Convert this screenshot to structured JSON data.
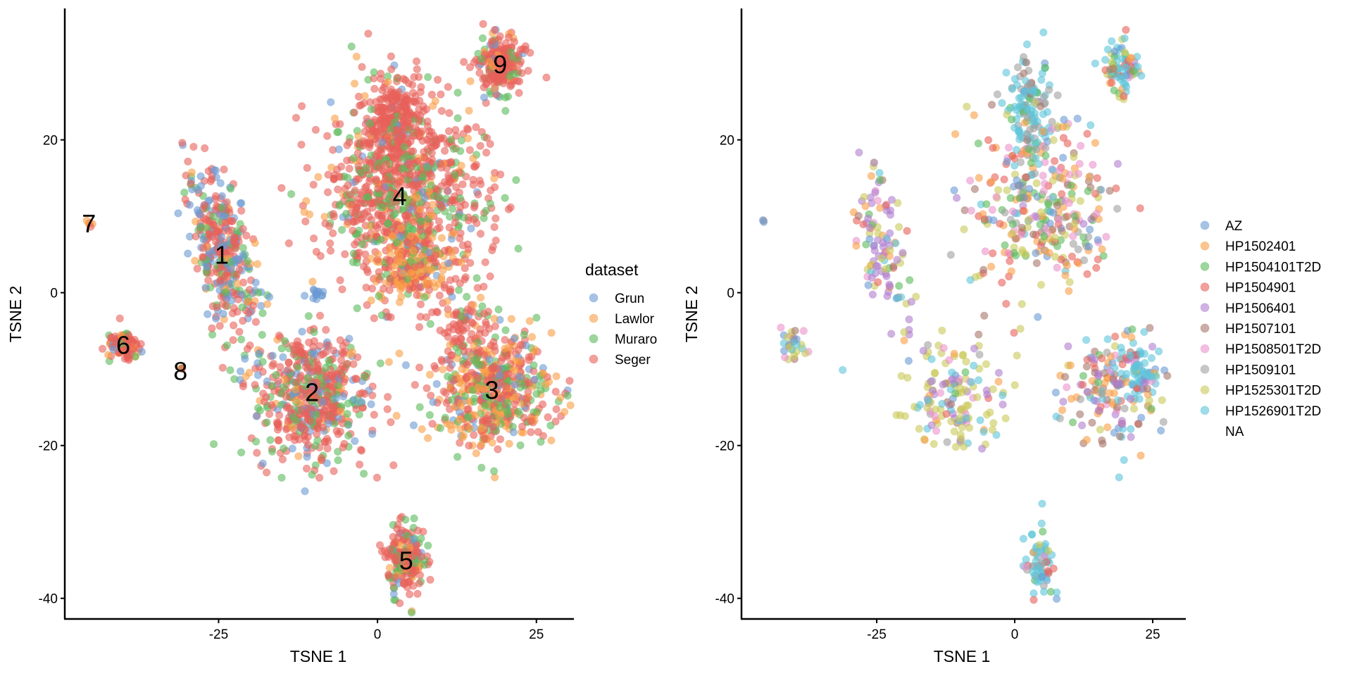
{
  "chart_data": [
    {
      "type": "scatter",
      "title": "",
      "xlabel": "TSNE 1",
      "ylabel": "TSNE 2",
      "xlim": [
        -49.2,
        30.9
      ],
      "ylim": [
        -42.7,
        37.2
      ],
      "xticks": [
        -25,
        0,
        25
      ],
      "xtick_labels": [
        "-25",
        "0",
        "25"
      ],
      "yticks": [
        -40,
        -20,
        0,
        20
      ],
      "ytick_labels": [
        "-40",
        "-20",
        "0",
        "20"
      ],
      "grid": false,
      "point_alpha": 0.6,
      "legend": {
        "title": "dataset",
        "placement": "right",
        "entries": [
          {
            "label": "Grun",
            "color": "#6A9AD4"
          },
          {
            "label": "Lawlor",
            "color": "#FA9E46"
          },
          {
            "label": "Muraro",
            "color": "#5CBB5C"
          },
          {
            "label": "Seger",
            "color": "#E8615A"
          }
        ]
      },
      "cluster_labels": [
        {
          "label": "1",
          "x": -24.5,
          "y": 5.0
        },
        {
          "label": "2",
          "x": -10.3,
          "y": -13.0
        },
        {
          "label": "3",
          "x": 18.0,
          "y": -12.7
        },
        {
          "label": "4",
          "x": 3.5,
          "y": 12.7
        },
        {
          "label": "5",
          "x": 4.5,
          "y": -35.0
        },
        {
          "label": "6",
          "x": -40.0,
          "y": -6.8
        },
        {
          "label": "7",
          "x": -45.4,
          "y": 9.1
        },
        {
          "label": "8",
          "x": -31.0,
          "y": -10.2
        },
        {
          "label": "9",
          "x": 19.3,
          "y": 29.9
        }
      ],
      "series": [
        {
          "name": "Grun",
          "color": "#6A9AD4"
        },
        {
          "name": "Lawlor",
          "color": "#FA9E46"
        },
        {
          "name": "Muraro",
          "color": "#5CBB5C"
        },
        {
          "name": "Seger",
          "color": "#E8615A"
        }
      ],
      "clusters": [
        {
          "id": "1",
          "cx": -24.5,
          "cy": 5.5,
          "sx": 2.2,
          "sy": 5.2,
          "tilt": -0.25,
          "n": 380,
          "mix": [
            0.28,
            0.05,
            0.17,
            0.5
          ]
        },
        {
          "id": "2",
          "cx": -10.5,
          "cy": -13.5,
          "sx": 4.6,
          "sy": 4.2,
          "tilt": 0.0,
          "n": 560,
          "mix": [
            0.15,
            0.05,
            0.18,
            0.62
          ]
        },
        {
          "id": "3",
          "cx": 18.0,
          "cy": -12.5,
          "sx": 4.8,
          "sy": 3.8,
          "tilt": 0.0,
          "n": 560,
          "mix": [
            0.08,
            0.25,
            0.22,
            0.45
          ]
        },
        {
          "id": "4",
          "cx": 4.0,
          "cy": 12.5,
          "sx": 6.5,
          "sy": 6.5,
          "tilt": 0.0,
          "n": 950,
          "mix": [
            0.05,
            0.08,
            0.22,
            0.65
          ]
        },
        {
          "id": "4top",
          "cx": 2.5,
          "cy": 22.5,
          "sx": 2.0,
          "sy": 3.2,
          "tilt": 0.0,
          "n": 220,
          "mix": [
            0.02,
            0.01,
            0.02,
            0.95
          ]
        },
        {
          "id": "4low",
          "cx": 5.5,
          "cy": 3.8,
          "sx": 3.2,
          "sy": 2.3,
          "tilt": 0.0,
          "n": 180,
          "mix": [
            0.02,
            0.65,
            0.08,
            0.25
          ]
        },
        {
          "id": "5",
          "cx": 4.5,
          "cy": -35.0,
          "sx": 1.4,
          "sy": 2.2,
          "tilt": 0.0,
          "n": 200,
          "mix": [
            0.1,
            0.12,
            0.15,
            0.63
          ]
        },
        {
          "id": "6",
          "cx": -40.0,
          "cy": -7.0,
          "sx": 1.3,
          "sy": 1.1,
          "tilt": 0.0,
          "n": 100,
          "mix": [
            0.08,
            0.15,
            0.12,
            0.65
          ]
        },
        {
          "id": "7",
          "cx": -45.4,
          "cy": 9.1,
          "sx": 0.3,
          "sy": 0.3,
          "tilt": 0.0,
          "n": 5,
          "mix": [
            0.0,
            0.4,
            0.0,
            0.6
          ]
        },
        {
          "id": "8",
          "cx": -30.8,
          "cy": -9.8,
          "sx": 0.3,
          "sy": 0.3,
          "tilt": 0.0,
          "n": 4,
          "mix": [
            0.0,
            0.5,
            0.25,
            0.25
          ]
        },
        {
          "id": "9",
          "cx": 19.3,
          "cy": 29.8,
          "sx": 1.7,
          "sy": 1.8,
          "tilt": 0.0,
          "n": 240,
          "mix": [
            0.05,
            0.08,
            0.12,
            0.75
          ]
        },
        {
          "id": "blue-bridge",
          "cx": -9.5,
          "cy": -0.2,
          "sx": 0.7,
          "sy": 0.5,
          "tilt": 0.0,
          "n": 14,
          "mix": [
            1.0,
            0.0,
            0.0,
            0.0
          ]
        },
        {
          "id": "3top",
          "cx": 13.5,
          "cy": -4.0,
          "sx": 2.0,
          "sy": 2.2,
          "tilt": 0.0,
          "n": 60,
          "mix": [
            0.05,
            0.05,
            0.1,
            0.8
          ]
        }
      ]
    },
    {
      "type": "scatter",
      "title": "",
      "xlabel": "TSNE 1",
      "ylabel": "TSNE 2",
      "xlim": [
        -49.5,
        31.0
      ],
      "ylim": [
        -42.7,
        37.2
      ],
      "xticks": [
        -25,
        0,
        25
      ],
      "xtick_labels": [
        "-25",
        "0",
        "25"
      ],
      "yticks": [
        -40,
        -20,
        0,
        20
      ],
      "ytick_labels": [
        "-40",
        "-20",
        "0",
        "20"
      ],
      "grid": false,
      "point_alpha": 0.6,
      "legend": {
        "title": "",
        "placement": "right",
        "entries": [
          {
            "label": "AZ",
            "color": "#6A9AD4"
          },
          {
            "label": "HP1502401",
            "color": "#FA9E46"
          },
          {
            "label": "HP1504101T2D",
            "color": "#5CBB5C"
          },
          {
            "label": "HP1504901",
            "color": "#E8615A"
          },
          {
            "label": "HP1506401",
            "color": "#B07FCF"
          },
          {
            "label": "HP1507101",
            "color": "#A6766A"
          },
          {
            "label": "HP1508501T2D",
            "color": "#EB92CB"
          },
          {
            "label": "HP1509101",
            "color": "#A0A0A0"
          },
          {
            "label": "HP1525301T2D",
            "color": "#C9C95A"
          },
          {
            "label": "HP1526901T2D",
            "color": "#5EC5DA"
          },
          {
            "label": "NA",
            "color": ""
          }
        ]
      },
      "series": [
        {
          "name": "AZ",
          "color": "#6A9AD4"
        },
        {
          "name": "HP1502401",
          "color": "#FA9E46"
        },
        {
          "name": "HP1504101T2D",
          "color": "#5CBB5C"
        },
        {
          "name": "HP1504901",
          "color": "#E8615A"
        },
        {
          "name": "HP1506401",
          "color": "#B07FCF"
        },
        {
          "name": "HP1507101",
          "color": "#A6766A"
        },
        {
          "name": "HP1508501T2D",
          "color": "#EB92CB"
        },
        {
          "name": "HP1509101",
          "color": "#A0A0A0"
        },
        {
          "name": "HP1525301T2D",
          "color": "#C9C95A"
        },
        {
          "name": "HP1526901T2D",
          "color": "#5EC5DA"
        }
      ],
      "clusters": [
        {
          "id": "1",
          "cx": -24.0,
          "cy": 5.5,
          "sx": 2.0,
          "sy": 5.2,
          "tilt": -0.25,
          "n": 110,
          "mix": [
            0.02,
            0.08,
            0.06,
            0.05,
            0.38,
            0.03,
            0.1,
            0.02,
            0.14,
            0.12
          ]
        },
        {
          "id": "2",
          "cx": -10.0,
          "cy": -13.5,
          "sx": 4.2,
          "sy": 3.8,
          "tilt": 0.0,
          "n": 150,
          "mix": [
            0.03,
            0.03,
            0.03,
            0.03,
            0.12,
            0.03,
            0.1,
            0.03,
            0.45,
            0.15
          ]
        },
        {
          "id": "3",
          "cx": 18.0,
          "cy": -13.0,
          "sx": 4.5,
          "sy": 3.8,
          "tilt": 0.0,
          "n": 170,
          "mix": [
            0.08,
            0.2,
            0.04,
            0.12,
            0.1,
            0.15,
            0.05,
            0.08,
            0.03,
            0.15
          ]
        },
        {
          "id": "3cyan",
          "cx": 22.5,
          "cy": -10.5,
          "sx": 1.8,
          "sy": 1.4,
          "tilt": 0.0,
          "n": 50,
          "mix": [
            0.02,
            0.0,
            0.0,
            0.0,
            0.15,
            0.03,
            0.0,
            0.0,
            0.05,
            0.75
          ]
        },
        {
          "id": "4",
          "cx": 5.0,
          "cy": 11.5,
          "sx": 6.5,
          "sy": 6.0,
          "tilt": 0.0,
          "n": 320,
          "mix": [
            0.06,
            0.16,
            0.12,
            0.17,
            0.03,
            0.08,
            0.14,
            0.05,
            0.14,
            0.05
          ]
        },
        {
          "id": "4top",
          "cx": 2.8,
          "cy": 23.5,
          "sx": 2.0,
          "sy": 3.2,
          "tilt": 0.0,
          "n": 130,
          "mix": [
            0.02,
            0.02,
            0.04,
            0.0,
            0.02,
            0.08,
            0.0,
            0.32,
            0.0,
            0.5
          ]
        },
        {
          "id": "5",
          "cx": 4.5,
          "cy": -35.5,
          "sx": 1.3,
          "sy": 2.2,
          "tilt": 0.0,
          "n": 70,
          "mix": [
            0.06,
            0.04,
            0.04,
            0.08,
            0.02,
            0.02,
            0.03,
            0.1,
            0.05,
            0.56
          ]
        },
        {
          "id": "6",
          "cx": -40.0,
          "cy": -7.0,
          "sx": 1.2,
          "sy": 1.3,
          "tilt": 0.0,
          "n": 28,
          "mix": [
            0.05,
            0.0,
            0.0,
            0.12,
            0.0,
            0.12,
            0.12,
            0.1,
            0.4,
            0.09
          ]
        },
        {
          "id": "7",
          "cx": -45.3,
          "cy": 9.2,
          "sx": 0.2,
          "sy": 0.2,
          "tilt": 0.0,
          "n": 3,
          "mix": [
            0.34,
            0.33,
            0.0,
            0.33,
            0.0,
            0.0,
            0.0,
            0.0,
            0.0,
            0.0
          ]
        },
        {
          "id": "8",
          "cx": -31.0,
          "cy": -10.2,
          "sx": 0.1,
          "sy": 0.1,
          "tilt": 0.0,
          "n": 1,
          "mix": [
            0.0,
            0.0,
            0.0,
            0.0,
            0.0,
            0.0,
            0.0,
            0.0,
            0.0,
            1.0
          ]
        },
        {
          "id": "9",
          "cx": 19.5,
          "cy": 29.5,
          "sx": 1.6,
          "sy": 1.9,
          "tilt": 0.0,
          "n": 80,
          "mix": [
            0.04,
            0.06,
            0.08,
            0.08,
            0.02,
            0.04,
            0.04,
            0.02,
            0.12,
            0.5
          ]
        }
      ]
    }
  ]
}
